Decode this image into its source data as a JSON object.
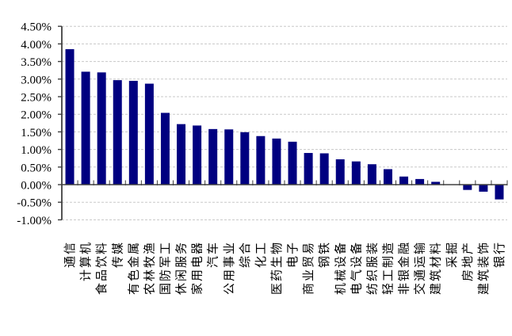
{
  "chart_data": {
    "type": "bar",
    "title": "",
    "subtitle": "",
    "legend": "none",
    "grid": "horizontal-dashed",
    "unit": "%",
    "categories": [
      "通信",
      "计算机",
      "食品饮料",
      "传媒",
      "有色金属",
      "农林牧渔",
      "国防军工",
      "休闲服务",
      "家用电器",
      "汽车",
      "公用事业",
      "综合",
      "化工",
      "医药生物",
      "电子",
      "商业贸易",
      "钢铁",
      "机械设备",
      "电气设备",
      "纺织服装",
      "轻工制造",
      "非银金融",
      "交通运输",
      "建筑材料",
      "采掘",
      "房地产",
      "建筑装饰",
      "银行"
    ],
    "values": [
      3.85,
      3.21,
      3.19,
      2.97,
      2.95,
      2.87,
      2.04,
      1.72,
      1.68,
      1.58,
      1.57,
      1.49,
      1.38,
      1.31,
      1.22,
      0.9,
      0.89,
      0.72,
      0.66,
      0.58,
      0.44,
      0.23,
      0.16,
      0.08,
      0.01,
      -0.15,
      -0.2,
      -0.42
    ],
    "y_axis": {
      "min": -1.0,
      "max": 4.5,
      "step": 0.5,
      "tick_labels": [
        "4.50%",
        "4.00%",
        "3.50%",
        "3.00%",
        "2.50%",
        "2.00%",
        "1.50%",
        "1.00%",
        "0.50%",
        "0.00%",
        "-0.50%",
        "-1.00%"
      ],
      "tick_values": [
        4.5,
        4.0,
        3.5,
        3.0,
        2.5,
        2.0,
        1.5,
        1.0,
        0.5,
        0.0,
        -0.5,
        -1.0
      ]
    },
    "x_axis": {
      "label_rotation_degrees": -90
    },
    "colors": {
      "bar": "#000080",
      "gridline": "#c8c8c8",
      "axis": "#404040",
      "text": "#000000",
      "background": "#ffffff"
    }
  }
}
